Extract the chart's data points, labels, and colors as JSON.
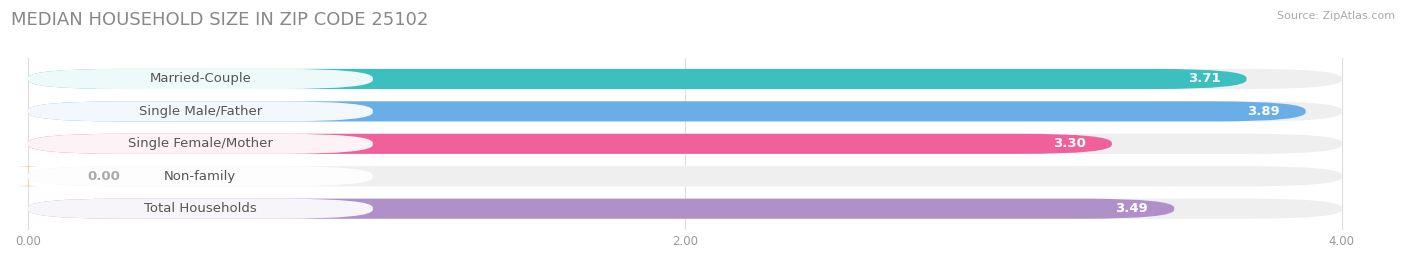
{
  "title": "MEDIAN HOUSEHOLD SIZE IN ZIP CODE 25102",
  "source": "Source: ZipAtlas.com",
  "categories": [
    "Married-Couple",
    "Single Male/Father",
    "Single Female/Mother",
    "Non-family",
    "Total Households"
  ],
  "values": [
    3.71,
    3.89,
    3.3,
    0.0,
    3.49
  ],
  "bar_colors": [
    "#3bbfbf",
    "#6aaee8",
    "#f0609a",
    "#f5cfa0",
    "#b090c8"
  ],
  "bar_bg_color": "#efefef",
  "xlim": [
    0,
    4.0
  ],
  "xticks": [
    0.0,
    2.0,
    4.0
  ],
  "label_fontsize": 9.5,
  "value_fontsize": 9.5,
  "title_fontsize": 13,
  "title_color": "#888888",
  "source_color": "#aaaaaa",
  "background_color": "#ffffff",
  "bar_height": 0.62,
  "bar_gap": 1.0,
  "figsize": [
    14.06,
    2.68
  ],
  "label_pill_color": "#ffffff",
  "label_text_color": "#555555",
  "nonfamily_value_color": "#aaaaaa"
}
